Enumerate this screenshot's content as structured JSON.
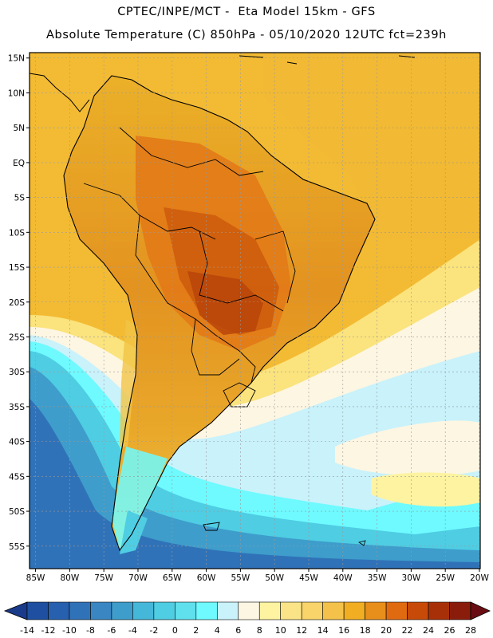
{
  "header": {
    "line1": "CPTEC/INPE/MCT -  Eta Model 15km - GFS",
    "line2": "Absolute Temperature (C) 850hPa - 05/10/2020 12UTC fct=239h"
  },
  "map": {
    "lat_labels": [
      "15N",
      "10N",
      "5N",
      "EQ",
      "5S",
      "10S",
      "15S",
      "20S",
      "25S",
      "30S",
      "35S",
      "40S",
      "45S",
      "50S",
      "55S"
    ],
    "lon_labels": [
      "85W",
      "80W",
      "75W",
      "70W",
      "65W",
      "60W",
      "55W",
      "50W",
      "45W",
      "40W",
      "35W",
      "30W",
      "25W",
      "20W"
    ],
    "extent": {
      "lon_min": -86,
      "lon_max": -20,
      "lat_min": -58,
      "lat_max": 16
    }
  },
  "legend": {
    "tick_labels": [
      "-14",
      "-12",
      "-10",
      "-8",
      "-6",
      "-4",
      "-2",
      "0",
      "2",
      "4",
      "6",
      "8",
      "10",
      "12",
      "14",
      "16",
      "18",
      "20",
      "22",
      "24",
      "26",
      "28"
    ],
    "colors": [
      "#1a3a8a",
      "#1e4fa0",
      "#2660ae",
      "#3072b8",
      "#3a86c2",
      "#3e9dcb",
      "#45b7d8",
      "#4fcde3",
      "#5fe0ec",
      "#6efaff",
      "#c9f2fb",
      "#fdf6e3",
      "#fdf3a0",
      "#fbe487",
      "#f8d46a",
      "#f4c24a",
      "#f1ae22",
      "#e88e1b",
      "#e06a10",
      "#c84a08",
      "#a83008",
      "#8a1c0c",
      "#6a0d12"
    ]
  }
}
